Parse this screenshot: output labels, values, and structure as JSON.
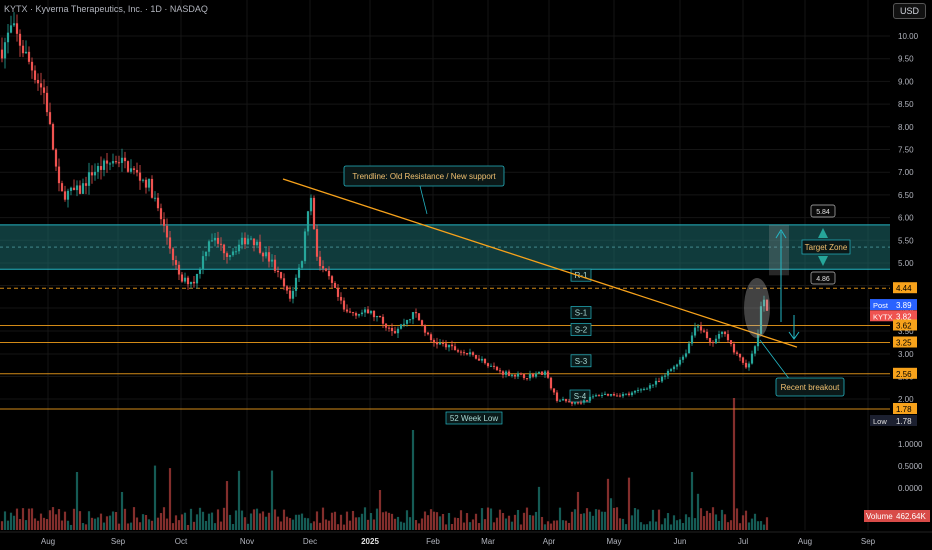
{
  "header": {
    "symbol_info": "KYTX · Kyverna Therapeutics, Inc. · 1D · NASDAQ",
    "currency": "USD"
  },
  "colors": {
    "up": "#26a69a",
    "down": "#ef5350",
    "orange": "#f7a21b",
    "teal_zone": "#1e6b6e",
    "cyan": "#24b6c4",
    "background": "#000000"
  },
  "chart_data": {
    "type": "candlestick",
    "y_ticks": [
      "10.00",
      "9.50",
      "9.00",
      "8.50",
      "8.00",
      "7.50",
      "7.00",
      "6.50",
      "6.00",
      "5.50",
      "5.00",
      "4.50",
      "4.00",
      "3.50",
      "3.00",
      "2.50",
      "2.00"
    ],
    "x_ticks": [
      "Aug",
      "Sep",
      "Oct",
      "Nov",
      "Dec",
      "2025",
      "Feb",
      "Mar",
      "Apr",
      "May",
      "Jun",
      "Jul",
      "Aug",
      "Sep"
    ],
    "volume_ticks": [
      "1.0000",
      "0.5000",
      "0.0000"
    ],
    "price_range": [
      1.78,
      10.6
    ],
    "ohlc_summary": {
      "start_price": 10.2,
      "high": 10.6,
      "low": 1.78,
      "last_price": 3.82
    },
    "zone": {
      "label": "Target Zone",
      "low": 4.86,
      "high": 5.84
    },
    "trendline": {
      "label": "Trendline: Old Resistance / New support",
      "from": {
        "date": "Nov 27",
        "price": 6.85
      },
      "to": {
        "date": "Jul 20",
        "price": 3.15
      }
    },
    "levels": [
      {
        "label": "R-1",
        "price": 4.44,
        "style": "dashed"
      },
      {
        "label": "S-1",
        "price": 3.62,
        "style": "solid"
      },
      {
        "label": "S-2",
        "price": 3.25,
        "style": "solid"
      },
      {
        "label": "S-3",
        "price": 2.56,
        "style": "solid"
      },
      {
        "label": "S-4",
        "price": 1.78,
        "style": "solid"
      }
    ],
    "price_labels": [
      {
        "text": "5.84",
        "value": 5.84
      },
      {
        "text": "4.86",
        "value": 4.86
      },
      {
        "text": "4.44",
        "value": 4.44
      },
      {
        "text": "3.89",
        "value": 3.89,
        "tag": "Post"
      },
      {
        "text": "3.82",
        "value": 3.82,
        "tag": "KYTX"
      },
      {
        "text": "3.62",
        "value": 3.62
      },
      {
        "text": "3.25",
        "value": 3.25
      },
      {
        "text": "2.56",
        "value": 2.56
      },
      {
        "text": "1.78",
        "value": 1.78
      },
      {
        "text": "1.78",
        "value": 1.78,
        "tag": "Low"
      }
    ],
    "annotations": {
      "week_low": "52 Week Low",
      "breakout": "Recent breakout"
    },
    "volume_label": "Volume",
    "volume_value": "462.64K"
  }
}
